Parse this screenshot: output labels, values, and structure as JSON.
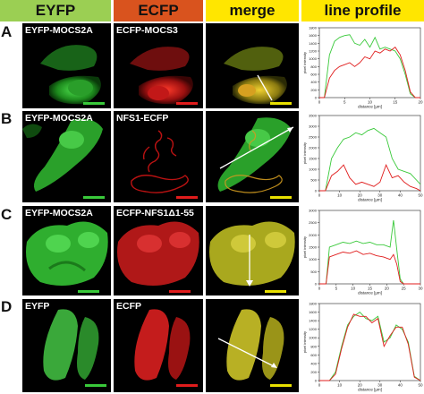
{
  "headers": [
    {
      "label": "EYFP",
      "bg": "#9bcf53"
    },
    {
      "label": "ECFP",
      "bg": "#d9531e"
    },
    {
      "label": "merge",
      "bg": "#ffe600"
    },
    {
      "label": "line profile",
      "bg": "#ffe600"
    }
  ],
  "rows": [
    {
      "letter": "A",
      "eyfp_label": "EYFP-MOCS2A",
      "ecfp_label": "ECFP-MOCS3"
    },
    {
      "letter": "B",
      "eyfp_label": "EYFP-MOCS2A",
      "ecfp_label": "NFS1-ECFP"
    },
    {
      "letter": "C",
      "eyfp_label": "EYFP-MOCS2A",
      "ecfp_label": "ECFP-NFS1Δ1-55"
    },
    {
      "letter": "D",
      "eyfp_label": "EYFP",
      "ecfp_label": "ECFP"
    }
  ],
  "colors": {
    "green": "#39c93a",
    "red": "#e01c1c",
    "yellow": "#e8e000",
    "merge": "#c8c41e"
  },
  "chart_data": [
    {
      "type": "line",
      "xlabel": "distance [µm]",
      "ylabel": "pixel intensity",
      "xlim": [
        0,
        20
      ],
      "ylim": [
        0,
        1800
      ],
      "xticks": [
        0,
        5,
        10,
        15,
        20
      ],
      "yticks": [
        0,
        200,
        400,
        600,
        800,
        1000,
        1200,
        1400,
        1600,
        1800
      ],
      "series": [
        {
          "color": "#39c93a",
          "x": [
            0,
            1,
            2,
            3,
            4,
            5,
            6,
            7,
            8,
            9,
            10,
            11,
            12,
            13,
            14,
            15,
            16,
            17,
            18,
            19,
            20
          ],
          "y": [
            0,
            0,
            1100,
            1450,
            1550,
            1600,
            1620,
            1400,
            1350,
            1500,
            1300,
            1550,
            1250,
            1300,
            1250,
            1200,
            1000,
            600,
            100,
            0,
            0
          ]
        },
        {
          "color": "#e01c1c",
          "x": [
            0,
            1,
            2,
            3,
            4,
            5,
            6,
            7,
            8,
            9,
            10,
            11,
            12,
            13,
            14,
            15,
            16,
            17,
            18,
            19,
            20
          ],
          "y": [
            0,
            0,
            500,
            700,
            800,
            850,
            900,
            800,
            900,
            1050,
            1000,
            1200,
            1150,
            1250,
            1200,
            1300,
            1100,
            700,
            150,
            0,
            0
          ]
        }
      ]
    },
    {
      "type": "line",
      "xlabel": "distance [µm]",
      "ylabel": "pixel intensity",
      "xlim": [
        0,
        50
      ],
      "ylim": [
        0,
        3500
      ],
      "xticks": [
        0,
        10,
        20,
        30,
        40,
        50
      ],
      "yticks": [
        0,
        500,
        1000,
        1500,
        2000,
        2500,
        3000,
        3500
      ],
      "series": [
        {
          "color": "#39c93a",
          "x": [
            0,
            3,
            6,
            9,
            12,
            15,
            18,
            21,
            24,
            27,
            30,
            33,
            36,
            39,
            42,
            45,
            48,
            50
          ],
          "y": [
            0,
            0,
            1500,
            2000,
            2400,
            2500,
            2700,
            2600,
            2800,
            2900,
            2700,
            2500,
            1500,
            1000,
            900,
            800,
            500,
            300
          ]
        },
        {
          "color": "#e01c1c",
          "x": [
            0,
            3,
            6,
            9,
            12,
            15,
            18,
            21,
            24,
            27,
            30,
            33,
            36,
            39,
            42,
            45,
            48,
            50
          ],
          "y": [
            0,
            0,
            700,
            900,
            1200,
            600,
            300,
            400,
            300,
            200,
            400,
            1200,
            600,
            700,
            400,
            200,
            100,
            0
          ]
        }
      ]
    },
    {
      "type": "line",
      "xlabel": "distance [µm]",
      "ylabel": "pixel intensity",
      "xlim": [
        0,
        30
      ],
      "ylim": [
        0,
        3000
      ],
      "xticks": [
        0,
        5,
        10,
        15,
        20,
        25,
        30
      ],
      "yticks": [
        0,
        500,
        1000,
        1500,
        2000,
        2500,
        3000
      ],
      "series": [
        {
          "color": "#39c93a",
          "x": [
            0,
            2,
            3,
            5,
            7,
            9,
            11,
            13,
            15,
            17,
            19,
            21,
            22,
            23,
            24,
            25,
            26,
            28,
            30
          ],
          "y": [
            0,
            0,
            1500,
            1600,
            1700,
            1650,
            1750,
            1650,
            1700,
            1600,
            1600,
            1500,
            2600,
            1400,
            200,
            0,
            0,
            0,
            0
          ]
        },
        {
          "color": "#e01c1c",
          "x": [
            0,
            2,
            3,
            5,
            7,
            9,
            11,
            13,
            15,
            17,
            19,
            21,
            22,
            23,
            24,
            25,
            26,
            28,
            30
          ],
          "y": [
            0,
            0,
            1100,
            1200,
            1300,
            1250,
            1350,
            1200,
            1250,
            1150,
            1100,
            1000,
            1200,
            800,
            100,
            0,
            0,
            0,
            0
          ]
        }
      ]
    },
    {
      "type": "line",
      "xlabel": "distance [µm]",
      "ylabel": "pixel intensity",
      "xlim": [
        0,
        50
      ],
      "ylim": [
        0,
        1800
      ],
      "xticks": [
        0,
        10,
        20,
        30,
        40,
        50
      ],
      "yticks": [
        0,
        200,
        400,
        600,
        800,
        1000,
        1200,
        1400,
        1600,
        1800
      ],
      "series": [
        {
          "color": "#39c93a",
          "x": [
            0,
            5,
            8,
            11,
            14,
            17,
            20,
            23,
            26,
            29,
            32,
            35,
            38,
            41,
            44,
            47,
            50
          ],
          "y": [
            0,
            0,
            200,
            800,
            1300,
            1500,
            1600,
            1450,
            1400,
            1500,
            900,
            1000,
            1300,
            1200,
            900,
            100,
            0
          ]
        },
        {
          "color": "#e01c1c",
          "x": [
            0,
            5,
            8,
            11,
            14,
            17,
            20,
            23,
            26,
            29,
            32,
            35,
            38,
            41,
            44,
            47,
            50
          ],
          "y": [
            0,
            0,
            150,
            750,
            1250,
            1550,
            1500,
            1500,
            1350,
            1450,
            800,
            1050,
            1250,
            1250,
            850,
            80,
            0
          ]
        }
      ]
    }
  ]
}
